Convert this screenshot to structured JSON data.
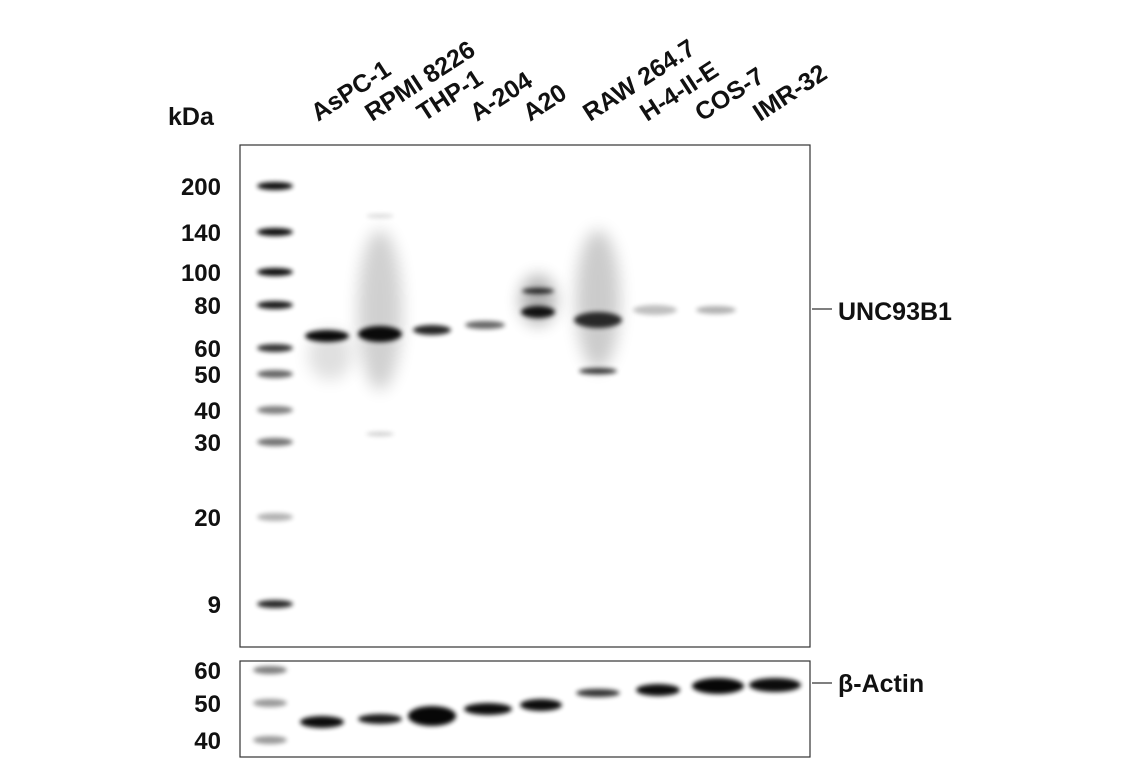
{
  "header": {
    "unit": "kDa"
  },
  "lanes": [
    "AsPC-1",
    "RPMI 8226",
    "THP-1",
    "A-204",
    "A20",
    "RAW 264.7",
    "H-4-II-E",
    "COS-7",
    "IMR-32"
  ],
  "blots": [
    {
      "label": "UNC93B1",
      "markers": [
        "200",
        "140",
        "100",
        "80",
        "60",
        "50",
        "40",
        "30",
        "20",
        "9"
      ]
    },
    {
      "label": "β-Actin",
      "markers": [
        "60",
        "50",
        "40"
      ]
    }
  ]
}
